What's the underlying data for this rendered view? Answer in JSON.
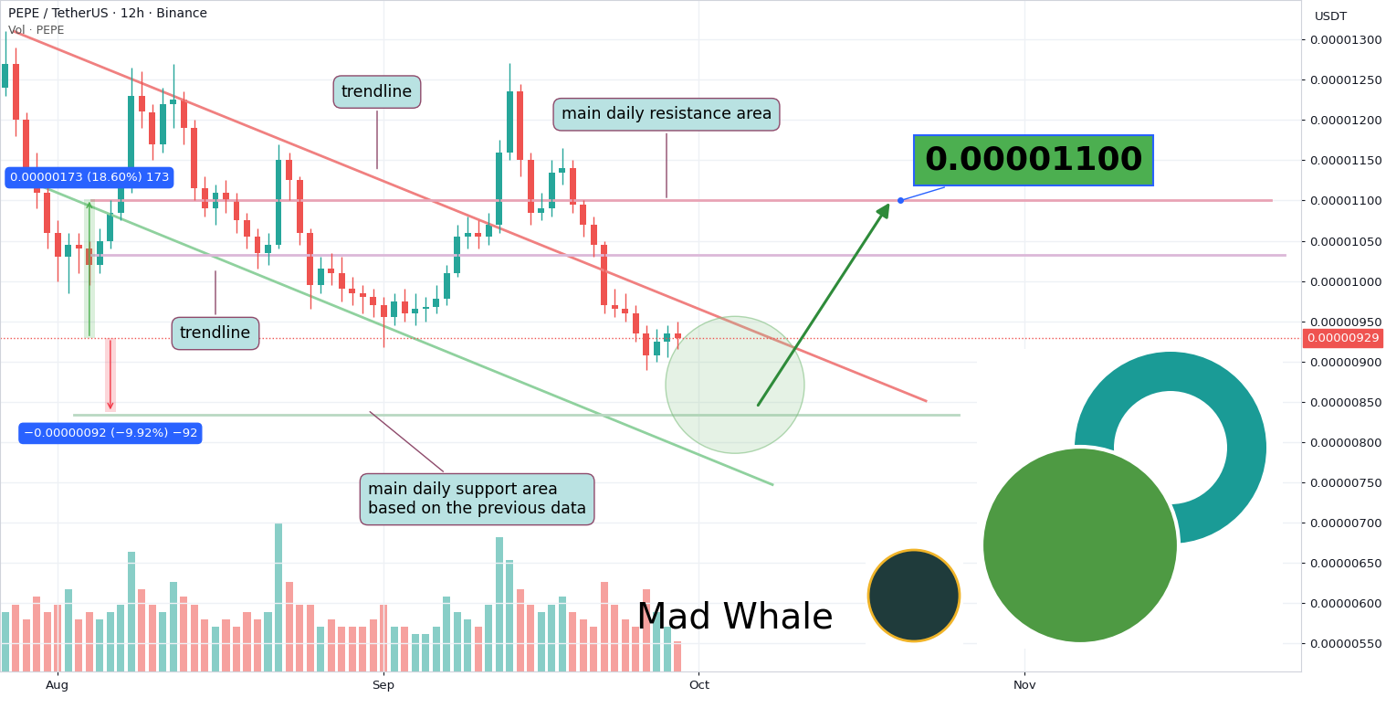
{
  "chart_data": {
    "type": "candlestick",
    "title": "PEPE / TetherUS · 12h · Binance",
    "subtitle": "Vol · PEPE",
    "y_unit": "USDT",
    "brand": "Mad Whale",
    "x": [
      -5,
      -4,
      -3,
      -2,
      -1,
      0,
      1,
      2,
      3,
      4,
      5,
      6,
      7,
      8,
      9,
      10,
      11,
      12,
      13,
      14,
      15,
      16,
      17,
      18,
      19,
      20,
      21,
      22,
      23,
      24,
      25,
      26,
      27,
      28,
      29,
      30,
      31,
      32,
      33,
      34,
      35,
      36,
      37,
      38,
      39,
      40,
      41,
      42,
      43,
      44,
      45,
      46,
      47,
      48,
      49,
      50,
      51,
      52,
      53,
      54,
      55,
      56,
      57,
      58,
      59
    ],
    "open": [
      1.24e-05,
      1.27e-05,
      1.2e-05,
      1.14e-05,
      1.11e-05,
      1.06e-05,
      1.03e-05,
      1.045e-05,
      1.04e-05,
      1.02e-05,
      1.05e-05,
      1.085e-05,
      1.12e-05,
      1.23e-05,
      1.21e-05,
      1.17e-05,
      1.22e-05,
      1.225e-05,
      1.19e-05,
      1.115e-05,
      1.09e-05,
      1.11e-05,
      1.1e-05,
      1.075e-05,
      1.055e-05,
      1.035e-05,
      1.045e-05,
      1.15e-05,
      1.125e-05,
      1.06e-05,
      9.95e-06,
      1.015e-05,
      1.01e-05,
      9.9e-06,
      9.85e-06,
      9.8e-06,
      9.7e-06,
      9.55e-06,
      9.75e-06,
      9.6e-06,
      9.65e-06,
      9.68e-06,
      9.78e-06,
      1.01e-05,
      1.055e-05,
      1.06e-05,
      1.055e-05,
      1.07e-05,
      1.16e-05,
      1.235e-05,
      1.15e-05,
      1.085e-05,
      1.09e-05,
      1.135e-05,
      1.14e-05,
      1.095e-05,
      1.07e-05,
      1.045e-05,
      9.7e-06,
      9.65e-06,
      9.6e-06,
      9.35e-06,
      9.08e-06,
      9.25e-06,
      9.35e-06
    ],
    "high": [
      1.31e-05,
      1.29e-05,
      1.21e-05,
      1.16e-05,
      1.12e-05,
      1.075e-05,
      1.06e-05,
      1.06e-05,
      1.05e-05,
      1.065e-05,
      1.1e-05,
      1.135e-05,
      1.265e-05,
      1.26e-05,
      1.22e-05,
      1.24e-05,
      1.27e-05,
      1.235e-05,
      1.2e-05,
      1.13e-05,
      1.12e-05,
      1.125e-05,
      1.11e-05,
      1.085e-05,
      1.065e-05,
      1.06e-05,
      1.17e-05,
      1.16e-05,
      1.13e-05,
      1.065e-05,
      1.03e-05,
      1.035e-05,
      1.03e-05,
      1.005e-05,
      9.95e-06,
      9.9e-06,
      9.8e-06,
      9.85e-06,
      9.9e-06,
      9.85e-06,
      9.8e-06,
      9.95e-06,
      1.02e-05,
      1.07e-05,
      1.08e-05,
      1.075e-05,
      1.085e-05,
      1.175e-05,
      1.271e-05,
      1.245e-05,
      1.16e-05,
      1.11e-05,
      1.15e-05,
      1.165e-05,
      1.15e-05,
      1.1e-05,
      1.08e-05,
      1.05e-05,
      9.9e-06,
      9.85e-06,
      9.7e-06,
      9.45e-06,
      9.4e-06,
      9.45e-06,
      9.5e-06
    ],
    "low": [
      1.23e-05,
      1.18e-05,
      1.12e-05,
      1.09e-05,
      1.04e-05,
      1e-05,
      9.85e-06,
      1.01e-05,
      9.95e-06,
      1.01e-05,
      1.04e-05,
      1.075e-05,
      1.11e-05,
      1.19e-05,
      1.15e-05,
      1.16e-05,
      1.19e-05,
      1.17e-05,
      1.1e-05,
      1.08e-05,
      1.07e-05,
      1.085e-05,
      1.06e-05,
      1.04e-05,
      1.015e-05,
      1.02e-05,
      1.04e-05,
      1.1e-05,
      1.045e-05,
      9.65e-06,
      9.85e-06,
      9.95e-06,
      9.75e-06,
      9.7e-06,
      9.6e-06,
      9.55e-06,
      9.18e-06,
      9.45e-06,
      9.5e-06,
      9.45e-06,
      9.5e-06,
      9.6e-06,
      9.7e-06,
      1.005e-05,
      1.04e-05,
      1.04e-05,
      1.045e-05,
      1.06e-05,
      1.15e-05,
      1.13e-05,
      1.07e-05,
      1.075e-05,
      1.08e-05,
      1.12e-05,
      1.085e-05,
      1.055e-05,
      1.03e-05,
      9.6e-06,
      9.55e-06,
      9.5e-06,
      9.25e-06,
      8.9e-06,
      9e-06,
      9.05e-06,
      9.15e-06
    ],
    "close": [
      1.27e-05,
      1.2e-05,
      1.14e-05,
      1.11e-05,
      1.06e-05,
      1.03e-05,
      1.045e-05,
      1.04e-05,
      1.02e-05,
      1.05e-05,
      1.085e-05,
      1.12e-05,
      1.23e-05,
      1.21e-05,
      1.17e-05,
      1.22e-05,
      1.225e-05,
      1.19e-05,
      1.115e-05,
      1.09e-05,
      1.11e-05,
      1.1e-05,
      1.075e-05,
      1.055e-05,
      1.035e-05,
      1.045e-05,
      1.15e-05,
      1.125e-05,
      1.06e-05,
      9.95e-06,
      1.015e-05,
      1.01e-05,
      9.9e-06,
      9.85e-06,
      9.8e-06,
      9.7e-06,
      9.55e-06,
      9.75e-06,
      9.6e-06,
      9.65e-06,
      9.68e-06,
      9.78e-06,
      1.01e-05,
      1.055e-05,
      1.06e-05,
      1.055e-05,
      1.07e-05,
      1.16e-05,
      1.235e-05,
      1.15e-05,
      1.085e-05,
      1.09e-05,
      1.135e-05,
      1.14e-05,
      1.095e-05,
      1.07e-05,
      1.045e-05,
      9.7e-06,
      9.65e-06,
      9.6e-06,
      9.35e-06,
      9.08e-06,
      9.25e-06,
      9.35e-06,
      9.29e-06
    ],
    "volume": [
      40,
      45,
      35,
      50,
      40,
      45,
      55,
      35,
      40,
      35,
      40,
      45,
      80,
      55,
      45,
      40,
      60,
      50,
      45,
      35,
      30,
      35,
      30,
      40,
      35,
      40,
      100,
      60,
      45,
      45,
      30,
      35,
      30,
      30,
      30,
      35,
      45,
      30,
      30,
      25,
      25,
      30,
      50,
      40,
      35,
      30,
      45,
      90,
      75,
      55,
      45,
      40,
      45,
      50,
      40,
      35,
      30,
      60,
      45,
      35,
      30,
      55,
      40,
      30,
      20
    ],
    "xlim": [
      -5.5,
      118.3
    ],
    "xticks": [
      {
        "value": 0,
        "label": "Aug"
      },
      {
        "value": 31,
        "label": "Sep"
      },
      {
        "value": 61,
        "label": "Oct"
      },
      {
        "value": 92,
        "label": "Nov"
      }
    ],
    "ylim": [
      5.15e-06,
      1.349e-05
    ],
    "yticks": [
      {
        "value": 5.5e-06,
        "label": "0.00000550"
      },
      {
        "value": 6e-06,
        "label": "0.00000600"
      },
      {
        "value": 6.5e-06,
        "label": "0.00000650"
      },
      {
        "value": 7e-06,
        "label": "0.00000700"
      },
      {
        "value": 7.5e-06,
        "label": "0.00000750"
      },
      {
        "value": 8e-06,
        "label": "0.00000800"
      },
      {
        "value": 8.5e-06,
        "label": "0.00000850"
      },
      {
        "value": 9e-06,
        "label": "0.00000900"
      },
      {
        "value": 9.5e-06,
        "label": "0.00000950"
      },
      {
        "value": 1e-05,
        "label": "0.00001000"
      },
      {
        "value": 1.05e-05,
        "label": "0.00001050"
      },
      {
        "value": 1.1e-05,
        "label": "0.00001100"
      },
      {
        "value": 1.15e-05,
        "label": "0.00001150"
      },
      {
        "value": 1.2e-05,
        "label": "0.00001200"
      },
      {
        "value": 1.25e-05,
        "label": "0.00001250"
      },
      {
        "value": 1.3e-05,
        "label": "0.00001300"
      }
    ],
    "y2lim": [
      0,
      450
    ],
    "y2ticks": [],
    "grid": true,
    "lines": [
      {
        "x": [
          -4.17,
          82.6
        ],
        "y": [
          1.31e-05,
          8.51e-06
        ],
        "color": "#f08080",
        "line_style": "solid"
      },
      {
        "x": [
          -2.0,
          68.0
        ],
        "y": [
          1.12e-05,
          7.47e-06
        ],
        "color": "#8fd19e",
        "line_style": "solid"
      },
      {
        "x": [
          3.2,
          115.4
        ],
        "y": [
          1.1e-05,
          1.1e-05
        ],
        "color": "#e8a3b5",
        "line_style": "solid"
      },
      {
        "x": [
          3.2,
          116.7
        ],
        "y": [
          1.032e-05,
          1.032e-05
        ],
        "color": "#dcb8d8",
        "line_style": "solid"
      },
      {
        "x": [
          1.5,
          85.7
        ],
        "y": [
          8.34e-06,
          8.34e-06
        ],
        "color": "#b9d8c2",
        "line_style": "solid"
      }
    ],
    "last_price": {
      "value": 9.29e-06,
      "label": "0.00000929"
    },
    "target": {
      "value": 1.1e-05,
      "label": "0.00001100",
      "arrow_from": [
        66.5,
        8.43e-06
      ],
      "arrow_to": [
        79.3,
        1.1e-05
      ],
      "x": 80.2
    },
    "measures": [
      {
        "x": 3,
        "from": 9.29e-06,
        "to": 1.102e-05,
        "label": "0.00000173 (18.60%) 173",
        "color": "#4caf50"
      },
      {
        "x": 5,
        "from": 9.29e-06,
        "to": 8.37e-06,
        "label": "−0.00000092 (−9.92%) −92",
        "color": "#f23645"
      }
    ],
    "annotations": [
      {
        "text": "trendline"
      },
      {
        "text": "trendline"
      },
      {
        "text": "main daily resistance area"
      },
      {
        "text": "main daily support area\nbased on the previous data"
      }
    ]
  }
}
